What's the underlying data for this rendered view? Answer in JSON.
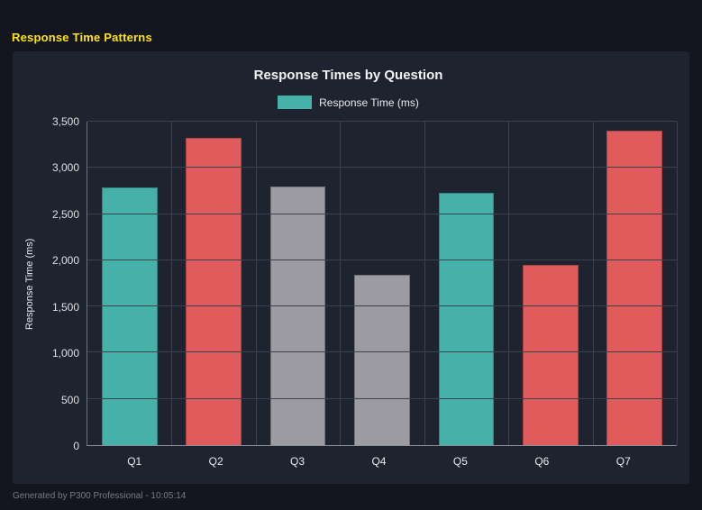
{
  "page": {
    "heading": "Response Time Patterns",
    "footer": "Generated by P300 Professional - 10:05:14"
  },
  "colors": {
    "teal": "#45b1a8",
    "red": "#e05c5c",
    "gray": "#9b9ba1",
    "panel_bg": "#1e2330",
    "page_bg": "#14161f",
    "heading_yellow": "#ffe400"
  },
  "chart_data": {
    "type": "bar",
    "title": "Response Times by Question",
    "legend": [
      {
        "label": "Response Time (ms)",
        "color": "#45b1a8"
      }
    ],
    "legend_position": "top",
    "categories": [
      "Q1",
      "Q2",
      "Q3",
      "Q4",
      "Q5",
      "Q6",
      "Q7"
    ],
    "values": [
      2790,
      3320,
      2800,
      1840,
      2730,
      1950,
      3400
    ],
    "bar_colors": [
      "#45b1a8",
      "#e05c5c",
      "#9b9ba1",
      "#9b9ba1",
      "#45b1a8",
      "#e05c5c",
      "#e05c5c"
    ],
    "xlabel": "",
    "ylabel": "Response Time (ms)",
    "ylim": [
      0,
      3500
    ],
    "ytick_values": [
      0,
      500,
      1000,
      1500,
      2000,
      2500,
      3000,
      3500
    ],
    "ytick_labels": [
      "0",
      "500",
      "1,000",
      "1,500",
      "2,000",
      "2,500",
      "3,000",
      "3,500"
    ],
    "grid": true
  }
}
